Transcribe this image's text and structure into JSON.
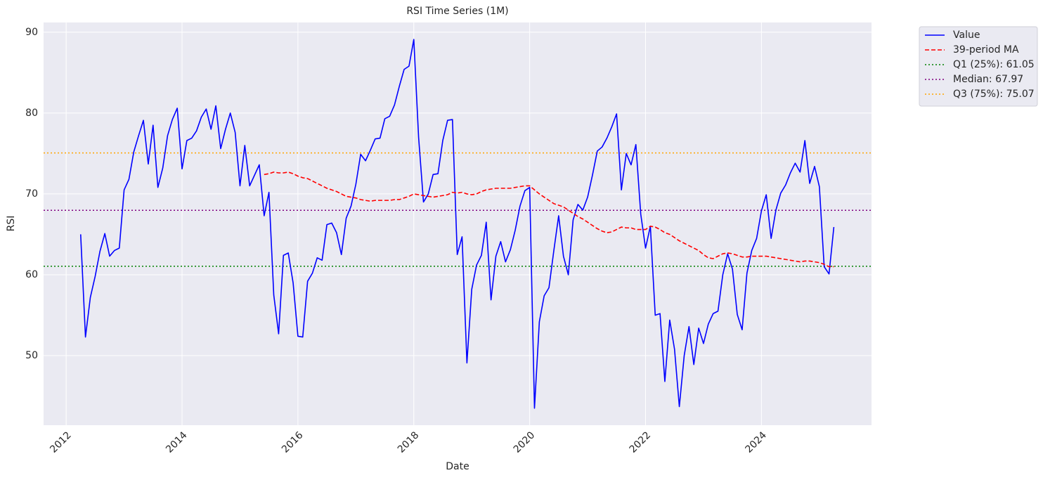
{
  "chart_data": {
    "type": "line",
    "title": "RSI Time Series (1M)",
    "xlabel": "Date",
    "ylabel": "RSI",
    "x": [
      2012.25,
      2012.333,
      2012.417,
      2012.5,
      2012.583,
      2012.667,
      2012.75,
      2012.833,
      2012.917,
      2013,
      2013.083,
      2013.167,
      2013.25,
      2013.333,
      2013.417,
      2013.5,
      2013.583,
      2013.667,
      2013.75,
      2013.833,
      2013.917,
      2014,
      2014.083,
      2014.167,
      2014.25,
      2014.333,
      2014.417,
      2014.5,
      2014.583,
      2014.667,
      2014.75,
      2014.833,
      2014.917,
      2015,
      2015.083,
      2015.167,
      2015.25,
      2015.333,
      2015.417,
      2015.5,
      2015.583,
      2015.667,
      2015.75,
      2015.833,
      2015.917,
      2016,
      2016.083,
      2016.167,
      2016.25,
      2016.333,
      2016.417,
      2016.5,
      2016.583,
      2016.667,
      2016.75,
      2016.833,
      2016.917,
      2017,
      2017.083,
      2017.167,
      2017.25,
      2017.333,
      2017.417,
      2017.5,
      2017.583,
      2017.667,
      2017.75,
      2017.833,
      2017.917,
      2018,
      2018.083,
      2018.167,
      2018.25,
      2018.333,
      2018.417,
      2018.5,
      2018.583,
      2018.667,
      2018.75,
      2018.833,
      2018.917,
      2019,
      2019.083,
      2019.167,
      2019.25,
      2019.333,
      2019.417,
      2019.5,
      2019.583,
      2019.667,
      2019.75,
      2019.833,
      2019.917,
      2020,
      2020.083,
      2020.167,
      2020.25,
      2020.333,
      2020.417,
      2020.5,
      2020.583,
      2020.667,
      2020.75,
      2020.833,
      2020.917,
      2021,
      2021.083,
      2021.167,
      2021.25,
      2021.333,
      2021.417,
      2021.5,
      2021.583,
      2021.667,
      2021.75,
      2021.833,
      2021.917,
      2022,
      2022.083,
      2022.167,
      2022.25,
      2022.333,
      2022.417,
      2022.5,
      2022.583,
      2022.667,
      2022.75,
      2022.833,
      2022.917,
      2023,
      2023.083,
      2023.167,
      2023.25,
      2023.333,
      2023.417,
      2023.5,
      2023.583,
      2023.667,
      2023.75,
      2023.833,
      2023.917,
      2024,
      2024.083,
      2024.167,
      2024.25,
      2024.333,
      2024.417,
      2024.5,
      2024.583,
      2024.667,
      2024.75,
      2024.833,
      2024.917,
      2025,
      2025.083,
      2025.167,
      2025.25
    ],
    "series": [
      {
        "name": "Value",
        "color": "#0000ff",
        "dash": "solid",
        "values": [
          65.0,
          52.3,
          57.2,
          59.8,
          62.9,
          65.1,
          62.3,
          63.0,
          63.3,
          70.5,
          71.8,
          75.2,
          77.2,
          79.1,
          73.7,
          78.5,
          70.8,
          73.2,
          77.2,
          79.2,
          80.6,
          73.1,
          76.6,
          76.9,
          77.8,
          79.5,
          80.5,
          78.0,
          80.9,
          75.6,
          78.0,
          80.0,
          77.6,
          71.0,
          76.0,
          71.0,
          72.3,
          73.6,
          67.3,
          70.2,
          57.5,
          52.7,
          62.4,
          62.7,
          59.0,
          52.4,
          52.3,
          59.2,
          60.2,
          62.1,
          61.8,
          66.2,
          66.4,
          65.2,
          62.5,
          67.0,
          68.5,
          71.2,
          74.9,
          74.1,
          75.4,
          76.8,
          76.9,
          79.3,
          79.6,
          81.0,
          83.3,
          85.4,
          85.8,
          89.1,
          77.0,
          69.0,
          70.0,
          72.4,
          72.5,
          76.6,
          79.1,
          79.2,
          62.5,
          64.7,
          49.1,
          58.2,
          61.2,
          62.4,
          66.5,
          56.9,
          62.3,
          64.1,
          61.6,
          63.1,
          65.5,
          68.5,
          70.4,
          70.8,
          43.5,
          54.2,
          57.4,
          58.4,
          63.0,
          67.3,
          62.3,
          60.0,
          66.8,
          68.7,
          68.0,
          69.6,
          72.3,
          75.3,
          75.8,
          76.9,
          78.3,
          79.9,
          70.5,
          75.0,
          73.6,
          76.1,
          67.5,
          63.3,
          66.0,
          55.0,
          55.2,
          46.8,
          54.4,
          50.8,
          43.7,
          50.0,
          53.6,
          48.9,
          53.4,
          51.5,
          53.9,
          55.2,
          55.5,
          60.0,
          62.6,
          60.7,
          55.1,
          53.2,
          60.2,
          63.0,
          64.5,
          67.9,
          69.9,
          64.5,
          68.0,
          70.1,
          71.1,
          72.6,
          73.8,
          72.7,
          76.6,
          71.3,
          73.4,
          70.9,
          61.0,
          60.1,
          65.9
        ]
      },
      {
        "name": "39-period MA",
        "color": "#ff0000",
        "dash": "dashed",
        "values": [
          null,
          null,
          null,
          null,
          null,
          null,
          null,
          null,
          null,
          null,
          null,
          null,
          null,
          null,
          null,
          null,
          null,
          null,
          null,
          null,
          null,
          null,
          null,
          null,
          null,
          null,
          null,
          null,
          null,
          null,
          null,
          null,
          null,
          null,
          null,
          null,
          null,
          null,
          72.4,
          72.5,
          72.7,
          72.6,
          72.6,
          72.7,
          72.5,
          72.2,
          72.0,
          71.9,
          71.6,
          71.3,
          71.0,
          70.7,
          70.5,
          70.3,
          70.0,
          69.7,
          69.6,
          69.5,
          69.3,
          69.2,
          69.1,
          69.2,
          69.2,
          69.2,
          69.2,
          69.3,
          69.3,
          69.5,
          69.7,
          70.0,
          69.9,
          69.8,
          69.7,
          69.6,
          69.7,
          69.8,
          69.9,
          70.2,
          70.1,
          70.2,
          70.0,
          69.9,
          70.0,
          70.3,
          70.5,
          70.6,
          70.7,
          70.7,
          70.7,
          70.7,
          70.8,
          70.9,
          71.0,
          71.0,
          70.5,
          70.0,
          69.6,
          69.2,
          68.8,
          68.6,
          68.4,
          68.0,
          67.6,
          67.2,
          66.9,
          66.5,
          66.1,
          65.7,
          65.4,
          65.2,
          65.3,
          65.6,
          65.9,
          65.8,
          65.8,
          65.6,
          65.6,
          65.6,
          66.0,
          65.9,
          65.6,
          65.2,
          65.0,
          64.6,
          64.2,
          63.9,
          63.6,
          63.3,
          63.0,
          62.5,
          62.1,
          62.0,
          62.3,
          62.6,
          62.7,
          62.6,
          62.4,
          62.2,
          62.2,
          62.3,
          62.3,
          62.3,
          62.3,
          62.2,
          62.1,
          62.0,
          61.9,
          61.8,
          61.7,
          61.6,
          61.7,
          61.7,
          61.6,
          61.5,
          61.3,
          61.0,
          61.0
        ]
      }
    ],
    "reference_lines": [
      {
        "name": "Q1 (25%): 61.05",
        "value": 61.05,
        "color": "#008000"
      },
      {
        "name": "Median: 67.97",
        "value": 67.97,
        "color": "#800080"
      },
      {
        "name": "Q3 (75%): 75.07",
        "value": 75.07,
        "color": "#ffa500"
      }
    ],
    "xlim": [
      2011.61,
      2025.9
    ],
    "xticks": [
      2012,
      2014,
      2016,
      2018,
      2020,
      2022,
      2024
    ],
    "ylim": [
      41.4,
      91.2
    ],
    "yticks": [
      50,
      60,
      70,
      80,
      90
    ],
    "grid": true,
    "legend": "outside upper right"
  }
}
